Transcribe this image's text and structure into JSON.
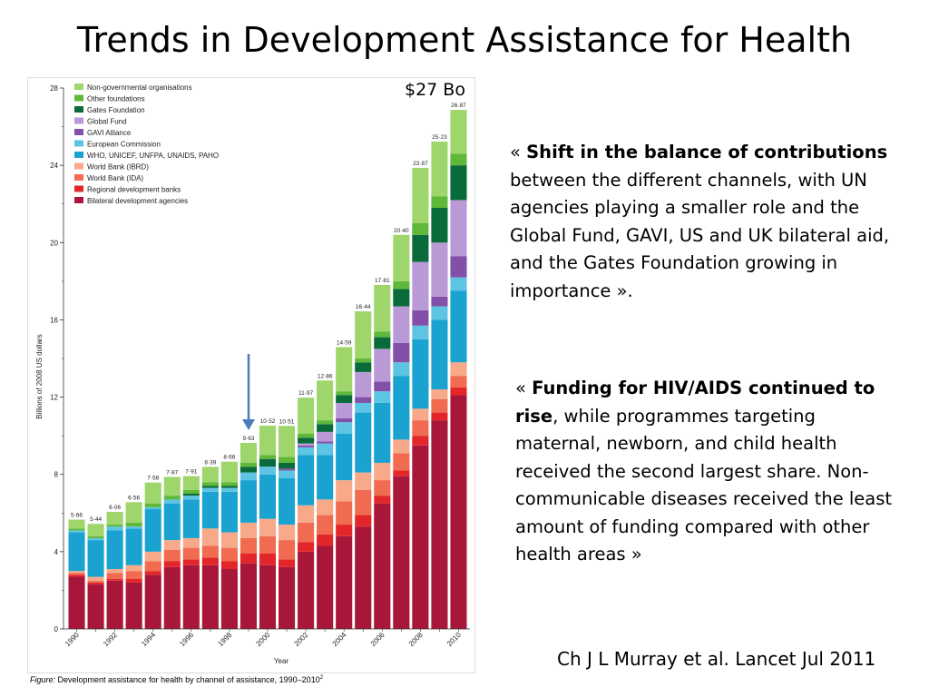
{
  "slide": {
    "title": "Trends in Development Assistance for Health",
    "annotation": "$27 Bo",
    "quote1": {
      "open": "« ",
      "bold": "Shift in the balance of contributions",
      "rest": " between the different channels, with UN agencies playing a smaller role and the Global Fund, GAVI, US and UK bilateral aid, and the Gates Foundation growing in importance »."
    },
    "quote2": {
      "open": "« ",
      "bold": "Funding for HIV/AIDS continued to rise",
      "rest": ", while programmes targeting maternal, newborn, and child health received the second largest share. Non-communicable diseases received the least amount of funding compared with other health areas »"
    },
    "citation": "Ch J L Murray et al. Lancet Jul 2011",
    "caption_prefix": "Figure:",
    "caption_text": " Development assistance for health by channel of assistance, 1990–2010",
    "caption_sup": "2"
  },
  "chart_data": {
    "type": "bar",
    "stacked": true,
    "xlabel": "Year",
    "ylabel": "Billions of 2008 US dollars",
    "ylim": [
      0,
      28
    ],
    "yticks": [
      "0",
      "4",
      "8",
      "12",
      "16",
      "20",
      "24",
      "28"
    ],
    "categories": [
      "1990",
      "1991",
      "1992",
      "1993",
      "1994",
      "1995",
      "1996",
      "1997",
      "1998",
      "1999",
      "2000",
      "2001",
      "2002",
      "2003",
      "2004",
      "2005",
      "2006",
      "2007",
      "2008",
      "2009",
      "2010"
    ],
    "xtick_labels": [
      "1990",
      "1992",
      "1994",
      "1996",
      "1998",
      "2000",
      "2002",
      "2004",
      "2006",
      "2008",
      "2010"
    ],
    "totals": [
      5.66,
      5.44,
      6.06,
      6.56,
      7.58,
      7.87,
      7.91,
      8.39,
      8.66,
      9.63,
      10.52,
      10.51,
      11.97,
      12.86,
      14.59,
      16.44,
      17.81,
      20.4,
      23.87,
      25.23,
      26.87
    ],
    "total_labels": [
      "5·66",
      "5·44",
      "6·06",
      "6·56",
      "7·58",
      "7·87",
      "7·91",
      "8·39",
      "8·66",
      "9·63",
      "10·52",
      "10·51",
      "11·97",
      "12·86",
      "14·59",
      "16·44",
      "17·81",
      "20·40",
      "23·87",
      "25·23",
      "26·87"
    ],
    "legend_position": "top-left",
    "series": [
      {
        "name": "Bilateral development agencies",
        "color": "#a8173a",
        "values": [
          2.7,
          2.3,
          2.5,
          2.4,
          2.8,
          3.2,
          3.3,
          3.3,
          3.1,
          3.4,
          3.3,
          3.2,
          4.0,
          4.3,
          4.8,
          5.3,
          6.5,
          7.9,
          9.5,
          10.8,
          12.1
        ]
      },
      {
        "name": "Regional development banks",
        "color": "#e3262a",
        "values": [
          0.1,
          0.1,
          0.1,
          0.2,
          0.2,
          0.3,
          0.3,
          0.4,
          0.4,
          0.5,
          0.6,
          0.4,
          0.5,
          0.6,
          0.6,
          0.6,
          0.4,
          0.3,
          0.5,
          0.4,
          0.4
        ]
      },
      {
        "name": "World Bank (IDA)",
        "color": "#f06b4f",
        "values": [
          0.1,
          0.1,
          0.3,
          0.4,
          0.5,
          0.6,
          0.6,
          0.6,
          0.7,
          0.8,
          0.9,
          1.0,
          1.0,
          1.0,
          1.2,
          1.3,
          0.8,
          0.9,
          0.8,
          0.7,
          0.6
        ]
      },
      {
        "name": "World Bank (IBRD)",
        "color": "#f7a98a",
        "values": [
          0.1,
          0.2,
          0.2,
          0.3,
          0.5,
          0.5,
          0.5,
          0.9,
          0.8,
          0.8,
          0.9,
          0.8,
          0.9,
          0.8,
          1.1,
          0.9,
          0.9,
          0.7,
          0.6,
          0.5,
          0.7
        ]
      },
      {
        "name": "WHO, UNICEF, UNFPA, UNAIDS, PAHO",
        "color": "#1aa3d1",
        "values": [
          2.0,
          1.9,
          2.0,
          1.9,
          2.2,
          1.9,
          2.0,
          1.9,
          2.1,
          2.2,
          2.3,
          2.4,
          2.6,
          2.3,
          2.4,
          3.1,
          3.1,
          3.3,
          3.6,
          3.6,
          3.7
        ]
      },
      {
        "name": "European Commission",
        "color": "#5ec4e3",
        "values": [
          0.1,
          0.1,
          0.2,
          0.1,
          0.1,
          0.2,
          0.2,
          0.2,
          0.2,
          0.4,
          0.4,
          0.4,
          0.4,
          0.6,
          0.6,
          0.5,
          0.6,
          0.7,
          0.7,
          0.7,
          0.7
        ]
      },
      {
        "name": "GAVI Alliance",
        "color": "#8250a8",
        "values": [
          0,
          0,
          0,
          0,
          0,
          0,
          0,
          0,
          0,
          0,
          0,
          0.1,
          0.1,
          0.1,
          0.2,
          0.3,
          0.5,
          1.0,
          0.8,
          0.5,
          1.1
        ]
      },
      {
        "name": "Global Fund",
        "color": "#b99ad6",
        "values": [
          0,
          0,
          0,
          0,
          0,
          0,
          0,
          0,
          0,
          0,
          0,
          0,
          0.1,
          0.5,
          0.8,
          1.3,
          1.7,
          1.9,
          2.5,
          2.8,
          2.9
        ]
      },
      {
        "name": "Gates Foundation",
        "color": "#0a6b3a",
        "values": [
          0,
          0,
          0,
          0,
          0,
          0,
          0.1,
          0.1,
          0.1,
          0.3,
          0.4,
          0.3,
          0.3,
          0.4,
          0.4,
          0.5,
          0.6,
          0.9,
          1.4,
          1.8,
          1.8
        ]
      },
      {
        "name": "Other foundations",
        "color": "#5fb83a",
        "values": [
          0.1,
          0.1,
          0.1,
          0.2,
          0.2,
          0.2,
          0.2,
          0.2,
          0.2,
          0.2,
          0.2,
          0.3,
          0.2,
          0.2,
          0.2,
          0.2,
          0.3,
          0.4,
          0.6,
          0.6,
          0.6
        ]
      },
      {
        "name": "Non-governmental organisations",
        "color": "#9ed66c",
        "values": [
          0.46,
          0.64,
          0.66,
          1.06,
          1.08,
          0.97,
          0.71,
          0.79,
          1.06,
          1.03,
          1.52,
          1.61,
          1.87,
          2.06,
          2.29,
          2.44,
          2.41,
          2.4,
          2.87,
          2.83,
          2.27
        ]
      }
    ],
    "arrow_year": "1999"
  }
}
